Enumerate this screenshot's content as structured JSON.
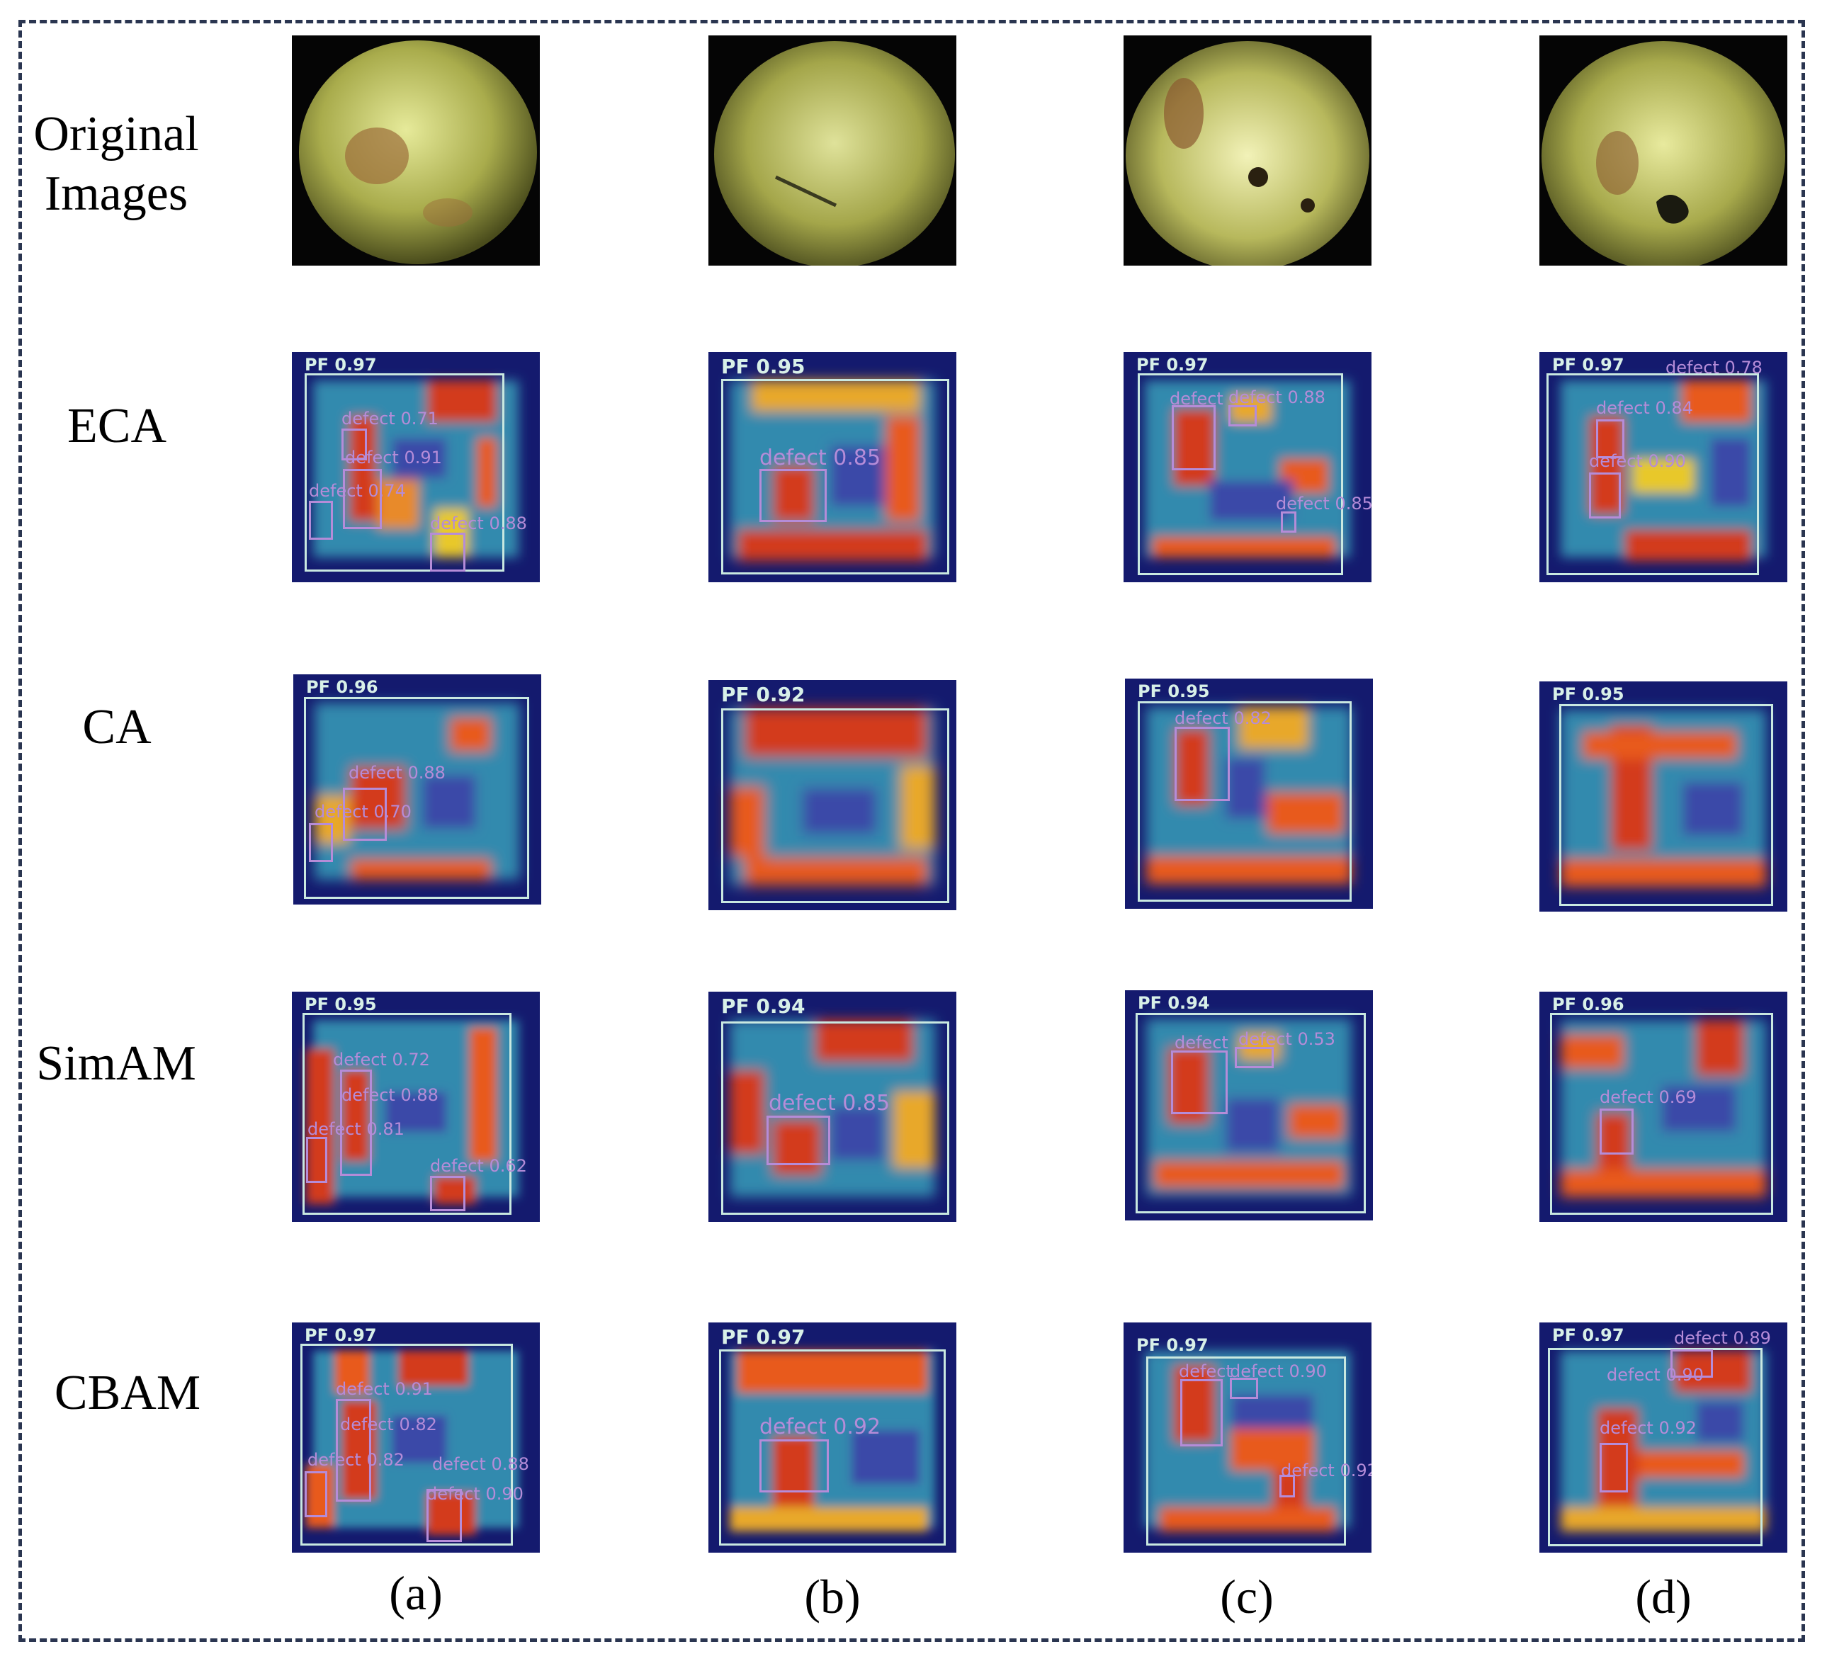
{
  "rows": [
    {
      "label": "Original\nImages"
    },
    {
      "label": "ECA"
    },
    {
      "label": "CA"
    },
    {
      "label": "SimAM"
    },
    {
      "label": "CBAM"
    }
  ],
  "columns": [
    "(a)",
    "(b)",
    "(c)",
    "(d)"
  ],
  "tiles": {
    "eca": [
      {
        "pf": "PF 0.97",
        "defects": [
          "defect 0.71",
          "defect 0.91",
          "defect 0.74",
          "defect 0.88"
        ]
      },
      {
        "pf": "PF 0.95",
        "defects": [
          "defect 0.85"
        ]
      },
      {
        "pf": "PF 0.97",
        "defects": [
          "defect",
          "defect 0.88",
          "defect 0.85"
        ]
      },
      {
        "pf": "PF 0.97",
        "defects": [
          "defect 0.78",
          "defect 0.84",
          "defect 0.90"
        ]
      }
    ],
    "ca": [
      {
        "pf": "PF 0.96",
        "defects": [
          "defect 0.88",
          "defect 0.70"
        ]
      },
      {
        "pf": "PF 0.92",
        "defects": []
      },
      {
        "pf": "PF 0.95",
        "defects": [
          "defect 0.82"
        ]
      },
      {
        "pf": "PF 0.95",
        "defects": []
      }
    ],
    "simam": [
      {
        "pf": "PF 0.95",
        "defects": [
          "defect 0.72",
          "defect 0.88",
          "defect 0.81",
          "defect 0.62"
        ]
      },
      {
        "pf": "PF 0.94",
        "defects": [
          "defect 0.85"
        ]
      },
      {
        "pf": "PF 0.94",
        "defects": [
          "defect",
          "defect 0.53"
        ]
      },
      {
        "pf": "PF 0.96",
        "defects": [
          "defect 0.69"
        ]
      }
    ],
    "cbam": [
      {
        "pf": "PF 0.97",
        "defects": [
          "defect 0.91",
          "defect 0.82",
          "defect 0.82",
          "defect 0.88",
          "defect 0.90"
        ]
      },
      {
        "pf": "PF 0.97",
        "defects": [
          "defect 0.92"
        ]
      },
      {
        "pf": "PF 0.97",
        "defects": [
          "defect",
          "defect 0.90",
          "defect 0.92"
        ]
      },
      {
        "pf": "PF 0.97",
        "defects": [
          "defect 0.89",
          "defect 0.90",
          "defect 0.92"
        ]
      }
    ]
  }
}
